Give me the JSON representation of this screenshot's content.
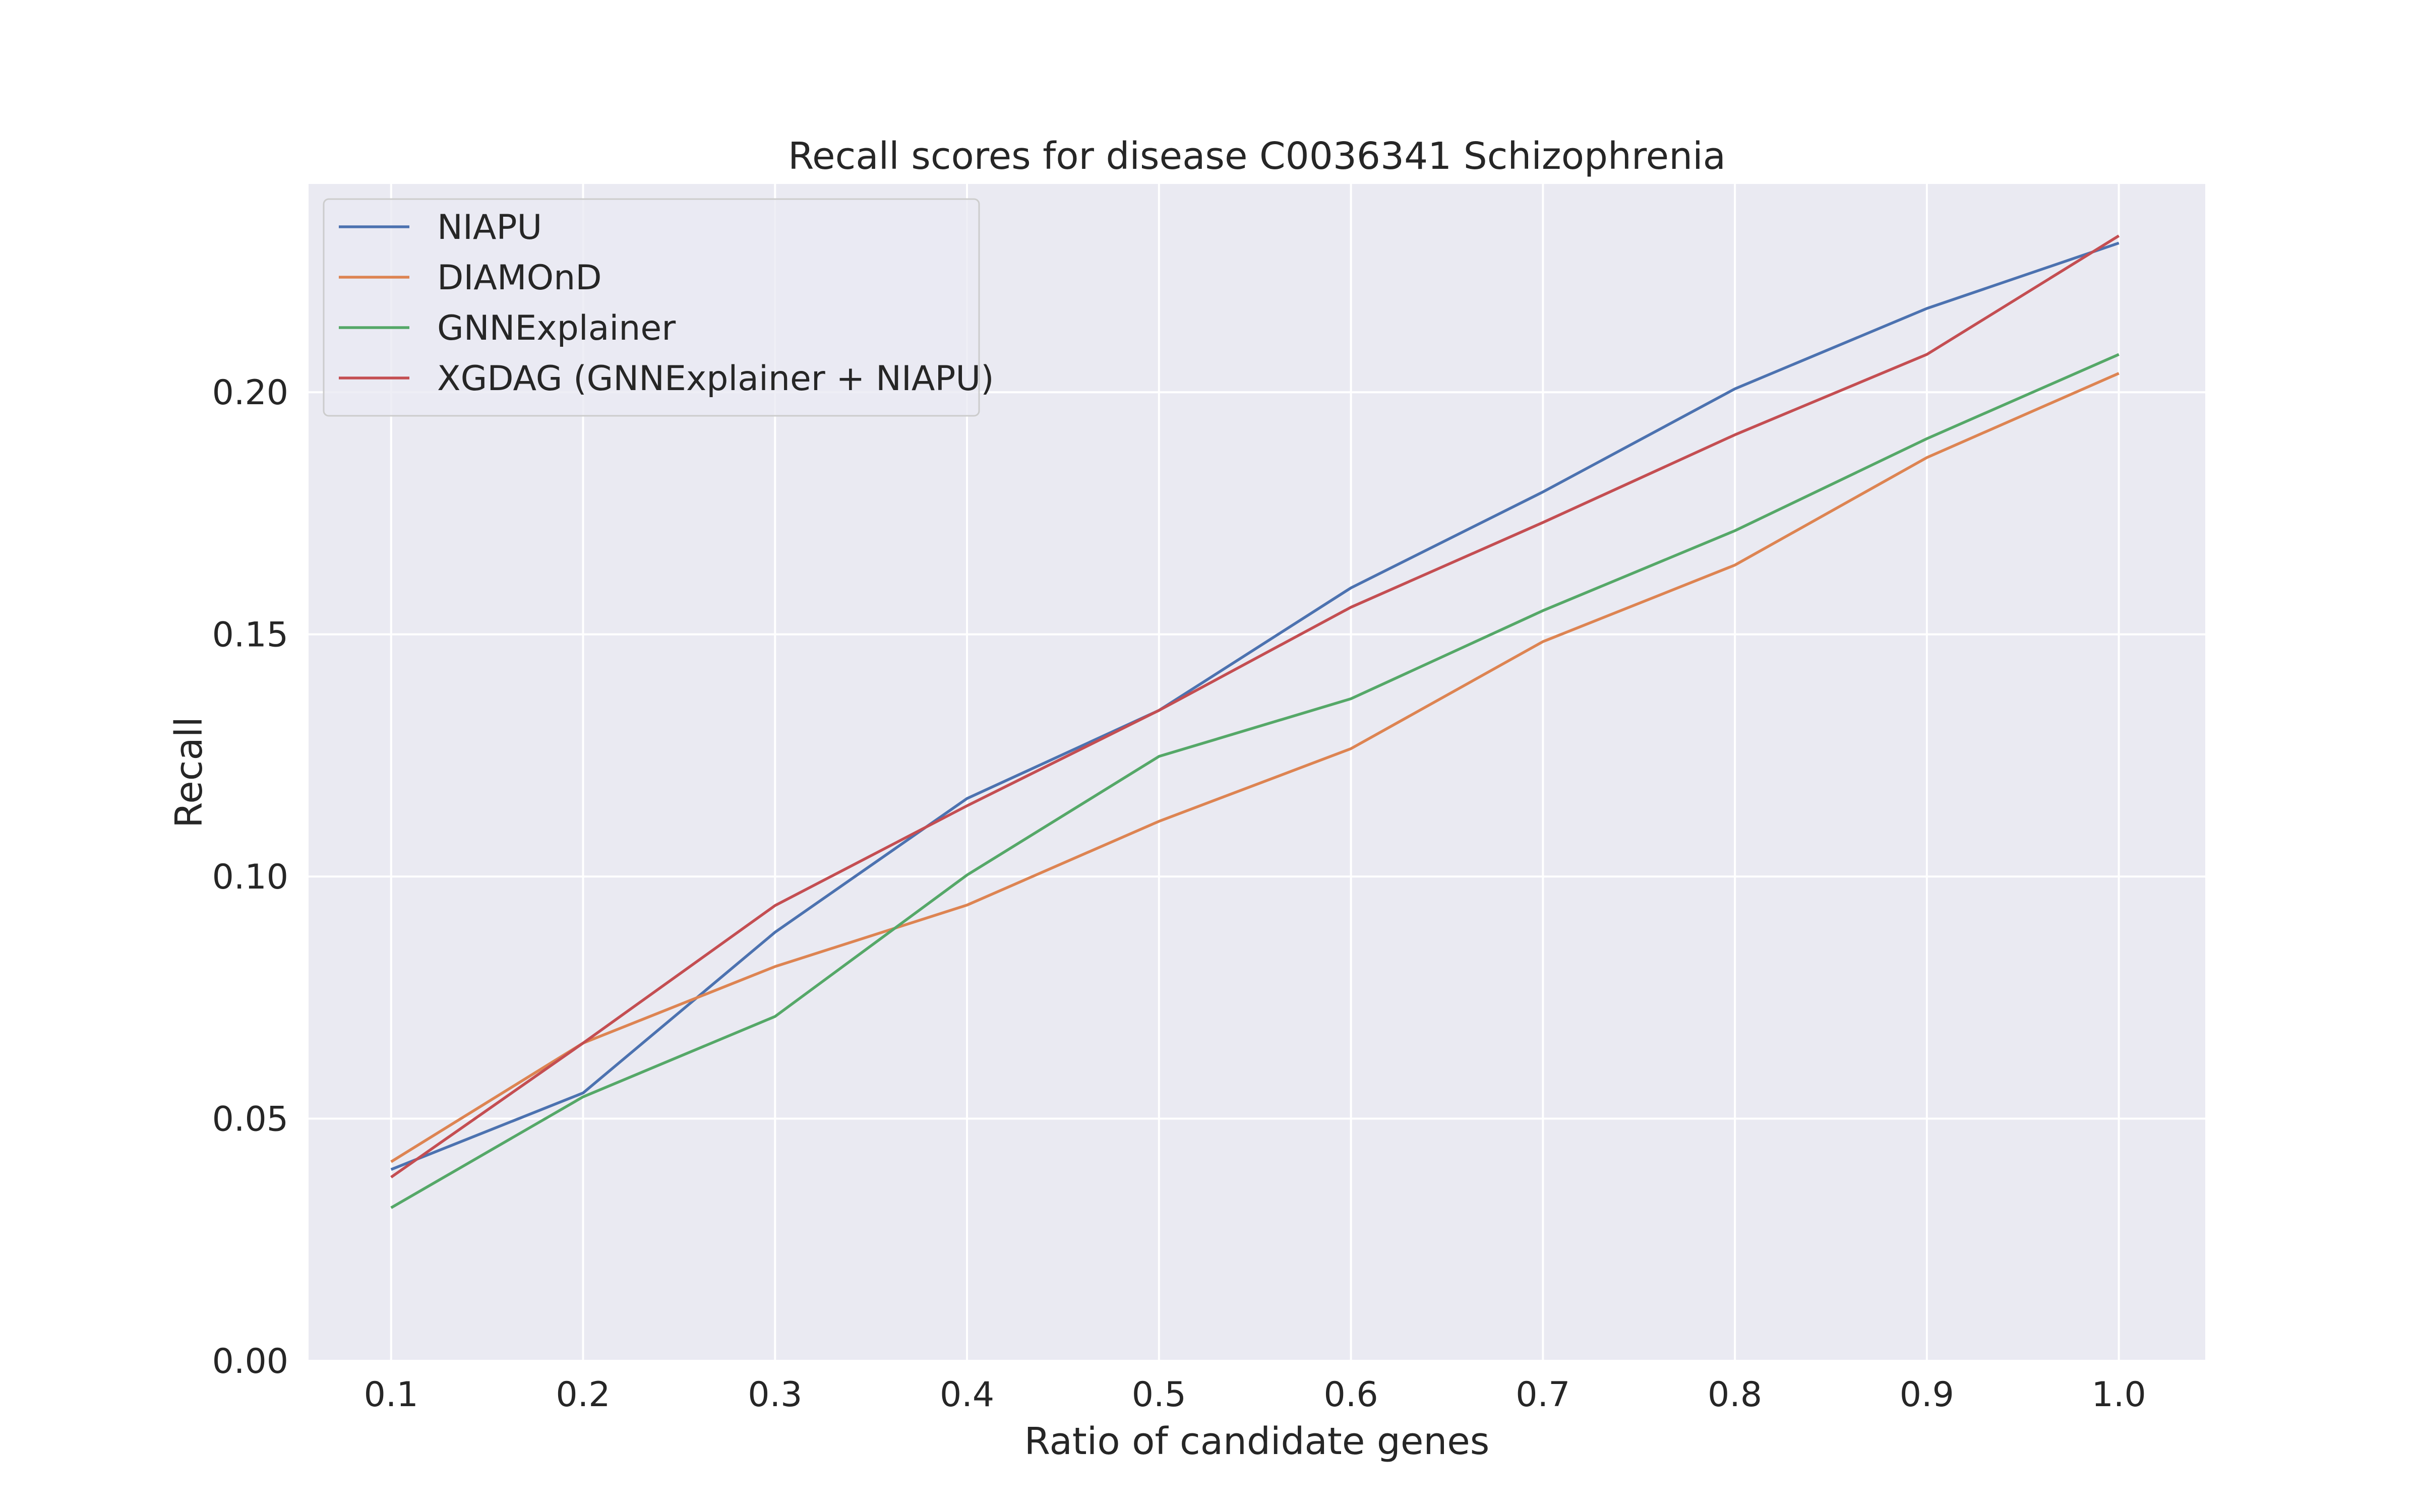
{
  "chart_data": {
    "type": "line",
    "title": "Recall scores for disease C0036341 Schizophrenia",
    "xlabel": "Ratio of candidate genes",
    "ylabel": "Recall",
    "x": [
      0.1,
      0.2,
      0.3,
      0.4,
      0.5,
      0.6,
      0.7,
      0.8,
      0.9,
      1.0
    ],
    "x_tick_labels": [
      "0.1",
      "0.2",
      "0.3",
      "0.4",
      "0.5",
      "0.6",
      "0.7",
      "0.8",
      "0.9",
      "1.0"
    ],
    "y_ticks": [
      0.0,
      0.05,
      0.1,
      0.15,
      0.2
    ],
    "y_tick_labels": [
      "0.00",
      "0.05",
      "0.10",
      "0.15",
      "0.20"
    ],
    "xlim": [
      0.057,
      1.045
    ],
    "ylim": [
      0.0,
      243
    ],
    "grid": true,
    "legend_position": "top-left",
    "background": "#eaeaf2",
    "grid_color": "#ffffff",
    "series": [
      {
        "name": "NIAPU",
        "color": "#4c72b0",
        "values": [
          0.0395,
          0.0553,
          0.0885,
          0.1161,
          0.1343,
          0.1596,
          0.1794,
          0.2007,
          0.2173,
          0.2308
        ]
      },
      {
        "name": "DIAMOnD",
        "color": "#dd8452",
        "values": [
          0.0411,
          0.0656,
          0.0814,
          0.0941,
          0.1114,
          0.1264,
          0.1485,
          0.1643,
          0.1865,
          0.2039
        ]
      },
      {
        "name": "GNNExplainer",
        "color": "#55a868",
        "values": [
          0.0316,
          0.0545,
          0.0711,
          0.1003,
          0.1248,
          0.1367,
          0.1549,
          0.1714,
          0.1904,
          0.2078
        ]
      },
      {
        "name": "XGDAG (GNNExplainer + NIAPU)",
        "color": "#c44e52",
        "values": [
          0.0379,
          0.0656,
          0.094,
          0.1146,
          0.1343,
          0.1556,
          0.1731,
          0.1912,
          0.2078,
          0.2323
        ]
      }
    ]
  }
}
